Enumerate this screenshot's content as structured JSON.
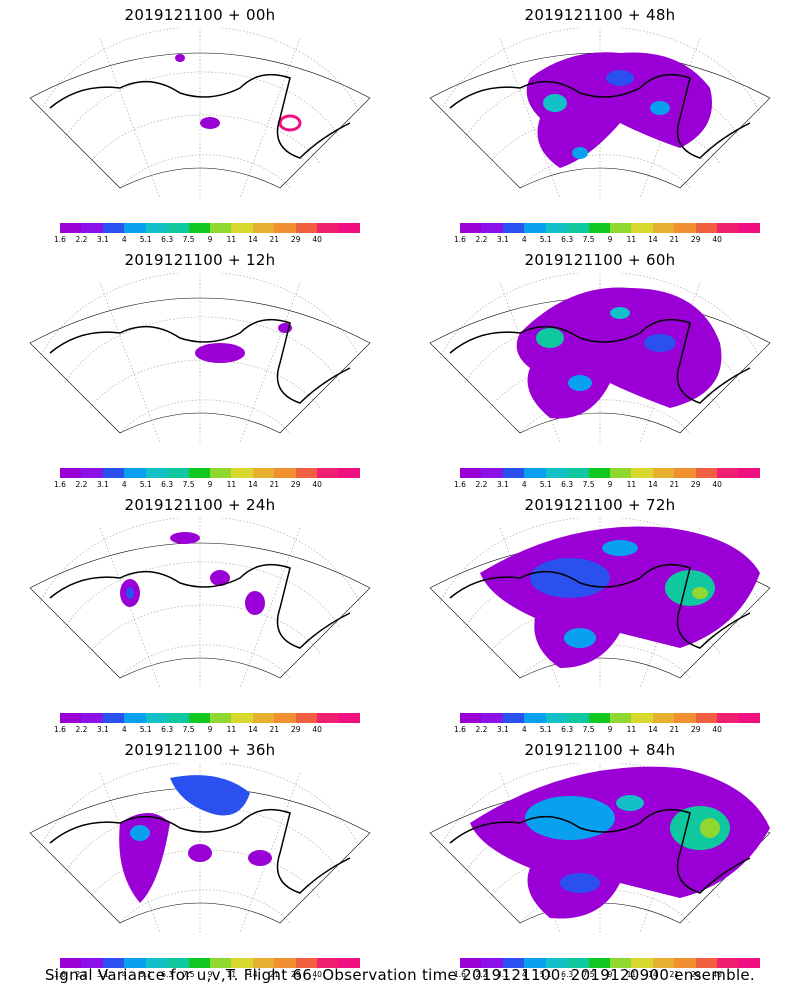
{
  "figure": {
    "caption": "Signal Variance for u,v,T. Flight 66. Observation time 2019121100. 2019120900 ensemble."
  },
  "colorbar": {
    "colors": [
      "#9a00d6",
      "#8c10e8",
      "#2a50f0",
      "#0aa0f0",
      "#14c0c8",
      "#10c8a0",
      "#10c820",
      "#90d830",
      "#d8d830",
      "#e8b030",
      "#f09030",
      "#f06040",
      "#f02070",
      "#f01080"
    ],
    "tick_labels": [
      "1.6",
      "2.2",
      "3.1",
      "4",
      "5.1",
      "6.3",
      "7.5",
      "9",
      "11",
      "14",
      "21",
      "29",
      "40"
    ]
  },
  "panels": [
    {
      "title": "2019121100 + 00h",
      "coverage": 0.04
    },
    {
      "title": "2019121100 + 48h",
      "coverage": 0.45
    },
    {
      "title": "2019121100 + 12h",
      "coverage": 0.1
    },
    {
      "title": "2019121100 + 60h",
      "coverage": 0.6
    },
    {
      "title": "2019121100 + 24h",
      "coverage": 0.18
    },
    {
      "title": "2019121100 + 72h",
      "coverage": 0.8
    },
    {
      "title": "2019121100 + 36h",
      "coverage": 0.35
    },
    {
      "title": "2019121100 + 84h",
      "coverage": 0.9
    }
  ]
}
